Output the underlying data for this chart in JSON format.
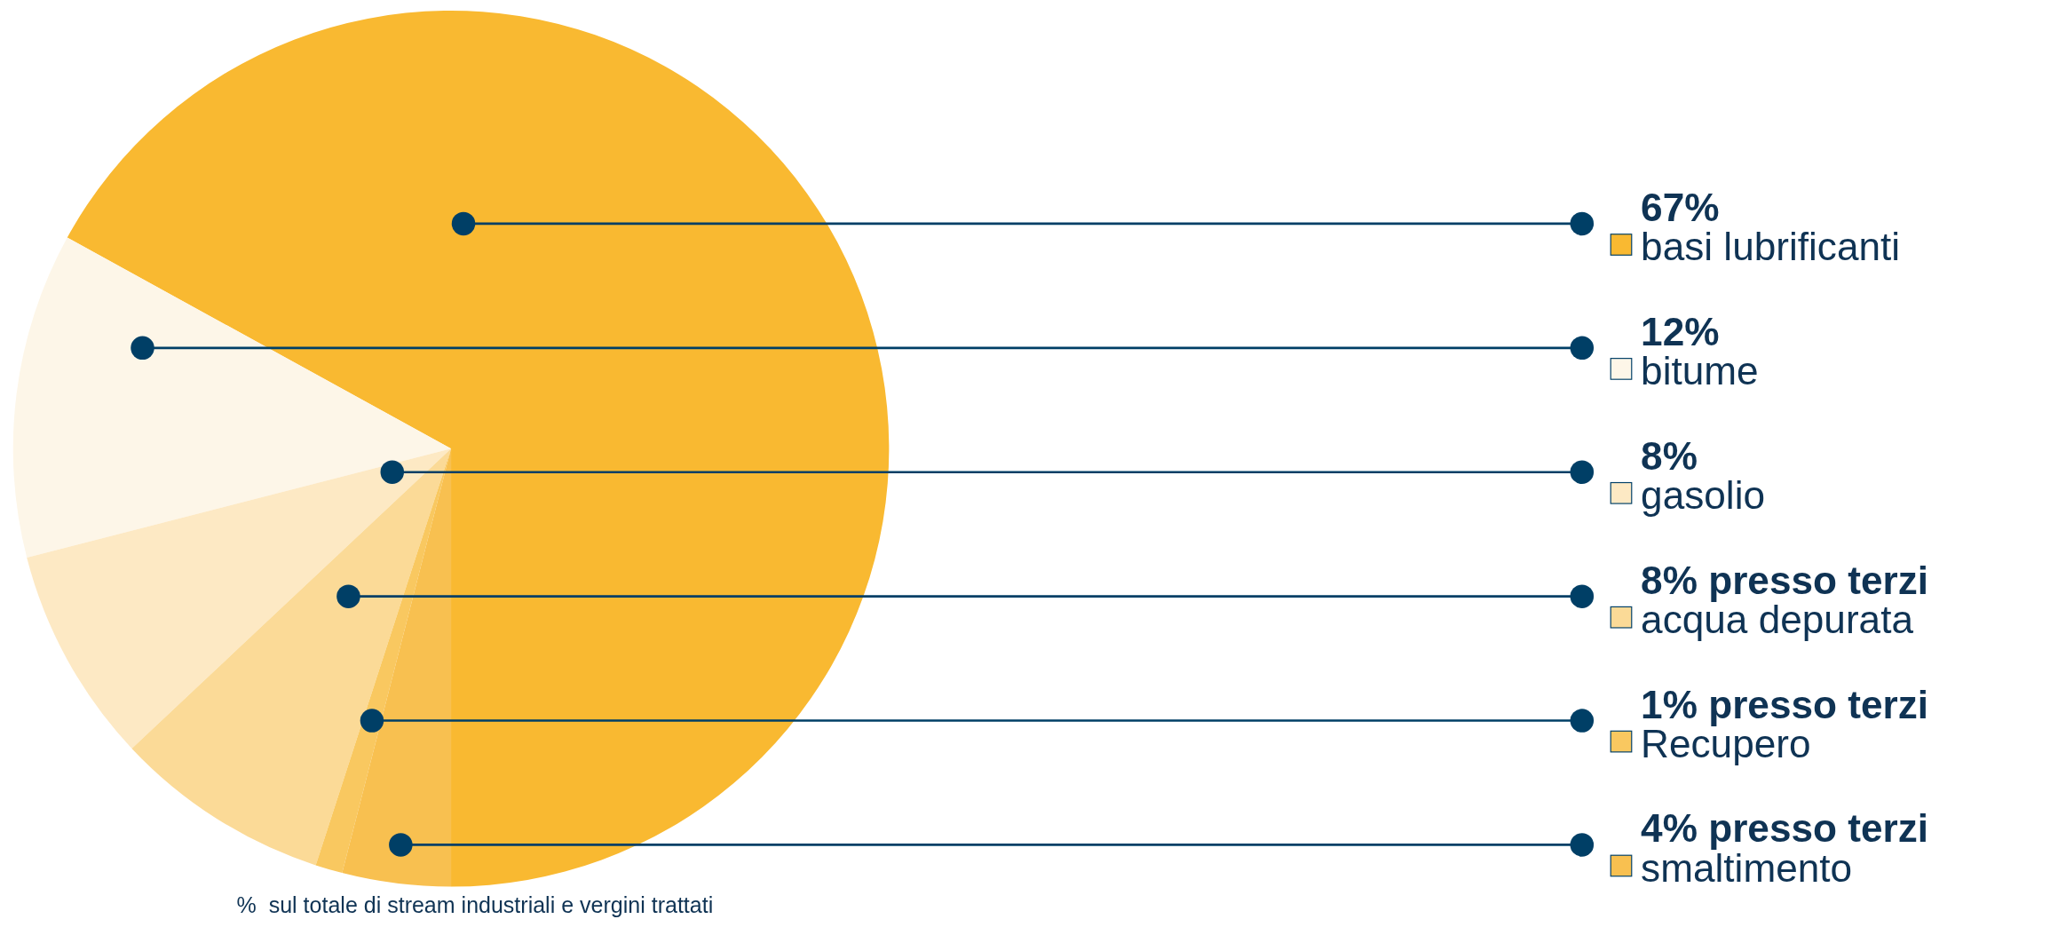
{
  "chart_data": {
    "type": "pie",
    "categories": [
      "basi lubrificanti",
      "bitume",
      "gasolio",
      "acqua depurata",
      "Recupero",
      "smaltimento"
    ],
    "values": [
      67,
      12,
      8,
      8,
      1,
      4
    ],
    "value_labels": [
      "67%",
      "12%",
      "8%",
      "8% presso terzi",
      "1% presso terzi",
      "4% presso terzi"
    ],
    "legend": "right",
    "colors": [
      "#f9b931",
      "#fdf6e8",
      "#fde9c4",
      "#fbda97",
      "#f9c860",
      "#f8c050"
    ],
    "annotations": [
      "%  sul totale di stream industriali e vergini trattati"
    ]
  }
}
